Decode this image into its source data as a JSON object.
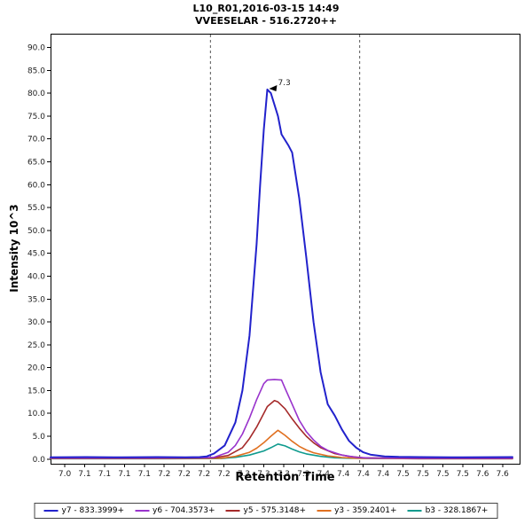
{
  "chart_data": {
    "type": "line",
    "title": "L10_R01,2016-03-15 14:49",
    "subtitle": "VVEESELAR - 516.2720++",
    "xlabel": "Retention Time",
    "ylabel": "Intensity 10^3",
    "xlim": [
      6.98,
      7.64
    ],
    "ylim": [
      -1,
      93
    ],
    "x_tick_start": 7.0,
    "x_tick_step": 0.028,
    "x_tick_labels": [
      "7.0",
      "7.1",
      "7.1",
      "7.1",
      "7.1",
      "7.2",
      "7.2",
      "7.2",
      "7.2",
      "7.3",
      "7.3",
      "7.3",
      "7.3",
      "7.4",
      "7.4",
      "7.4",
      "7.4",
      "7.5",
      "7.5",
      "7.5",
      "7.5",
      "7.6",
      "7.6"
    ],
    "y_ticks": [
      0,
      5,
      10,
      15,
      20,
      25,
      30,
      35,
      40,
      45,
      50,
      55,
      60,
      65,
      70,
      75,
      80,
      85,
      90
    ],
    "y_tick_labels": [
      "0.0",
      "5.0",
      "10.0",
      "15.0",
      "20.0",
      "25.0",
      "30.0",
      "35.0",
      "40.0",
      "45.0",
      "50.0",
      "55.0",
      "60.0",
      "65.0",
      "70.0",
      "75.0",
      "80.0",
      "85.0",
      "90.0"
    ],
    "boundaries": [
      7.205,
      7.415
    ],
    "boundary_color": "#555555",
    "annotation": {
      "text": "7.3",
      "x": 7.285,
      "y": 80.8
    },
    "series": [
      {
        "name": "y7 - 833.3999+",
        "color": "#2222CC",
        "width": 2,
        "points": [
          [
            6.98,
            0.4
          ],
          [
            7.03,
            0.45
          ],
          [
            7.08,
            0.4
          ],
          [
            7.13,
            0.45
          ],
          [
            7.17,
            0.4
          ],
          [
            7.19,
            0.45
          ],
          [
            7.2,
            0.6
          ],
          [
            7.21,
            1.2
          ],
          [
            7.225,
            3
          ],
          [
            7.24,
            8
          ],
          [
            7.25,
            15
          ],
          [
            7.26,
            27
          ],
          [
            7.27,
            47
          ],
          [
            7.275,
            60
          ],
          [
            7.28,
            72
          ],
          [
            7.285,
            80.8
          ],
          [
            7.29,
            80
          ],
          [
            7.3,
            75
          ],
          [
            7.305,
            71
          ],
          [
            7.315,
            68.5
          ],
          [
            7.32,
            67
          ],
          [
            7.33,
            57
          ],
          [
            7.34,
            44
          ],
          [
            7.35,
            30
          ],
          [
            7.36,
            19
          ],
          [
            7.37,
            12
          ],
          [
            7.38,
            9.5
          ],
          [
            7.39,
            6.5
          ],
          [
            7.4,
            4
          ],
          [
            7.41,
            2.5
          ],
          [
            7.42,
            1.5
          ],
          [
            7.43,
            1
          ],
          [
            7.45,
            0.6
          ],
          [
            7.47,
            0.5
          ],
          [
            7.5,
            0.45
          ],
          [
            7.56,
            0.4
          ],
          [
            7.63,
            0.45
          ]
        ]
      },
      {
        "name": "y6 - 704.3573+",
        "color": "#9933CC",
        "width": 1.6,
        "points": [
          [
            6.98,
            0.25
          ],
          [
            7.1,
            0.25
          ],
          [
            7.19,
            0.3
          ],
          [
            7.21,
            0.4
          ],
          [
            7.23,
            1.5
          ],
          [
            7.24,
            3
          ],
          [
            7.25,
            5.5
          ],
          [
            7.26,
            9
          ],
          [
            7.27,
            13
          ],
          [
            7.28,
            16.5
          ],
          [
            7.285,
            17.3
          ],
          [
            7.295,
            17.4
          ],
          [
            7.305,
            17.3
          ],
          [
            7.31,
            15.5
          ],
          [
            7.32,
            12
          ],
          [
            7.33,
            8.5
          ],
          [
            7.34,
            6
          ],
          [
            7.35,
            4.2
          ],
          [
            7.36,
            2.8
          ],
          [
            7.37,
            1.9
          ],
          [
            7.39,
            0.9
          ],
          [
            7.41,
            0.4
          ],
          [
            7.43,
            0.25
          ],
          [
            7.5,
            0.2
          ],
          [
            7.63,
            0.2
          ]
        ]
      },
      {
        "name": "y5 - 575.3148+",
        "color": "#A52A2A",
        "width": 1.6,
        "points": [
          [
            6.98,
            0.2
          ],
          [
            7.12,
            0.2
          ],
          [
            7.21,
            0.3
          ],
          [
            7.23,
            0.8
          ],
          [
            7.25,
            2.5
          ],
          [
            7.26,
            4.5
          ],
          [
            7.27,
            7
          ],
          [
            7.28,
            10
          ],
          [
            7.285,
            11.5
          ],
          [
            7.295,
            12.8
          ],
          [
            7.3,
            12.5
          ],
          [
            7.31,
            11
          ],
          [
            7.32,
            8.8
          ],
          [
            7.33,
            6.8
          ],
          [
            7.34,
            5
          ],
          [
            7.35,
            3.6
          ],
          [
            7.36,
            2.5
          ],
          [
            7.38,
            1.2
          ],
          [
            7.4,
            0.6
          ],
          [
            7.42,
            0.3
          ],
          [
            7.5,
            0.15
          ],
          [
            7.63,
            0.15
          ]
        ]
      },
      {
        "name": "y3 - 359.2401+",
        "color": "#E07020",
        "width": 1.6,
        "points": [
          [
            6.98,
            0.15
          ],
          [
            7.15,
            0.15
          ],
          [
            7.22,
            0.2
          ],
          [
            7.24,
            0.6
          ],
          [
            7.26,
            1.5
          ],
          [
            7.27,
            2.4
          ],
          [
            7.28,
            3.6
          ],
          [
            7.29,
            5
          ],
          [
            7.3,
            6.3
          ],
          [
            7.31,
            5.2
          ],
          [
            7.32,
            3.9
          ],
          [
            7.33,
            2.8
          ],
          [
            7.34,
            2
          ],
          [
            7.35,
            1.4
          ],
          [
            7.37,
            0.7
          ],
          [
            7.39,
            0.35
          ],
          [
            7.41,
            0.2
          ],
          [
            7.5,
            0.1
          ],
          [
            7.63,
            0.1
          ]
        ]
      },
      {
        "name": "b3 - 328.1867+",
        "color": "#0F9B8E",
        "width": 1.6,
        "points": [
          [
            6.98,
            0.1
          ],
          [
            7.15,
            0.1
          ],
          [
            7.22,
            0.15
          ],
          [
            7.24,
            0.4
          ],
          [
            7.26,
            0.9
          ],
          [
            7.28,
            1.8
          ],
          [
            7.29,
            2.5
          ],
          [
            7.3,
            3.3
          ],
          [
            7.31,
            2.9
          ],
          [
            7.32,
            2.2
          ],
          [
            7.33,
            1.6
          ],
          [
            7.34,
            1.15
          ],
          [
            7.36,
            0.6
          ],
          [
            7.38,
            0.3
          ],
          [
            7.4,
            0.2
          ],
          [
            7.5,
            0.1
          ],
          [
            7.63,
            0.1
          ]
        ]
      }
    ],
    "legend_position": "bottom"
  },
  "legend": {
    "items": [
      {
        "label": "y7 - 833.3999+",
        "color": "#2222CC"
      },
      {
        "label": "y6 - 704.3573+",
        "color": "#9933CC"
      },
      {
        "label": "y5 - 575.3148+",
        "color": "#A52A2A"
      },
      {
        "label": "y3 - 359.2401+",
        "color": "#E07020"
      },
      {
        "label": "b3 - 328.1867+",
        "color": "#0F9B8E"
      }
    ]
  }
}
